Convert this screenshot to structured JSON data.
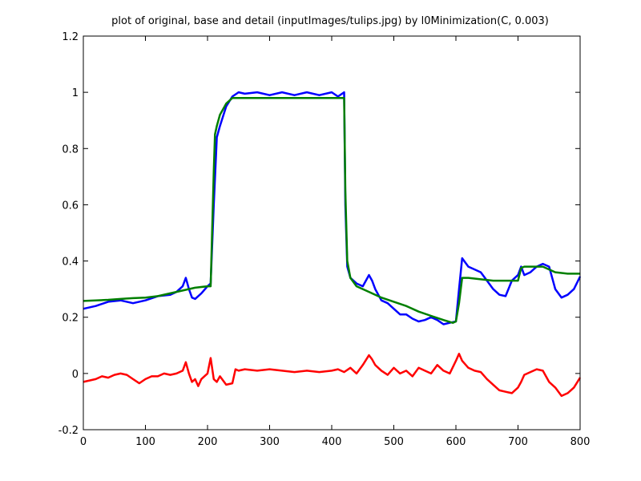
{
  "title": "plot of original, base and detail (inputImages/tulips.jpg) by l0Minimization(C, 0.003)",
  "chart_data": {
    "type": "line",
    "title": "plot of original, base and detail (inputImages/tulips.jpg) by l0Minimization(C, 0.003)",
    "xlabel": "",
    "ylabel": "",
    "xlim": [
      0,
      800
    ],
    "ylim": [
      -0.2,
      1.2
    ],
    "xticks": [
      "0",
      "100",
      "200",
      "300",
      "400",
      "500",
      "600",
      "700",
      "800"
    ],
    "yticks": [
      "-0.2",
      "0",
      "0.2",
      "0.4",
      "0.6",
      "0.8",
      "1",
      "1.2"
    ],
    "grid": false,
    "legend": "none",
    "series": [
      {
        "color": "#0000ff",
        "x": [
          0,
          20,
          40,
          60,
          80,
          100,
          120,
          140,
          150,
          160,
          165,
          170,
          175,
          180,
          190,
          200,
          205,
          210,
          215,
          220,
          230,
          240,
          250,
          260,
          280,
          300,
          320,
          340,
          360,
          380,
          400,
          410,
          420,
          422,
          425,
          430,
          440,
          450,
          460,
          465,
          470,
          480,
          490,
          500,
          510,
          520,
          530,
          540,
          550,
          560,
          570,
          580,
          590,
          600,
          605,
          610,
          620,
          630,
          640,
          650,
          660,
          670,
          680,
          690,
          700,
          705,
          710,
          720,
          730,
          740,
          750,
          760,
          770,
          780,
          790,
          800
        ],
        "values": [
          0.23,
          0.24,
          0.255,
          0.26,
          0.25,
          0.26,
          0.275,
          0.28,
          0.29,
          0.31,
          0.34,
          0.3,
          0.27,
          0.265,
          0.285,
          0.31,
          0.32,
          0.6,
          0.84,
          0.88,
          0.95,
          0.985,
          1.0,
          0.995,
          1.0,
          0.99,
          1.0,
          0.99,
          1.0,
          0.99,
          1.0,
          0.985,
          1.0,
          0.6,
          0.38,
          0.34,
          0.32,
          0.31,
          0.35,
          0.33,
          0.3,
          0.26,
          0.25,
          0.23,
          0.21,
          0.21,
          0.195,
          0.185,
          0.19,
          0.2,
          0.19,
          0.175,
          0.18,
          0.185,
          0.3,
          0.41,
          0.38,
          0.37,
          0.36,
          0.33,
          0.3,
          0.28,
          0.275,
          0.33,
          0.35,
          0.38,
          0.35,
          0.36,
          0.38,
          0.39,
          0.38,
          0.3,
          0.27,
          0.28,
          0.3,
          0.345
        ]
      },
      {
        "color": "#007f00",
        "x": [
          0,
          20,
          40,
          60,
          80,
          100,
          120,
          140,
          160,
          180,
          200,
          205,
          210,
          212,
          215,
          220,
          230,
          240,
          250,
          260,
          300,
          340,
          380,
          400,
          410,
          420,
          422,
          425,
          430,
          440,
          460,
          480,
          500,
          520,
          540,
          560,
          580,
          595,
          600,
          605,
          610,
          620,
          640,
          660,
          680,
          700,
          705,
          710,
          720,
          740,
          760,
          780,
          800
        ],
        "values": [
          0.258,
          0.26,
          0.262,
          0.265,
          0.268,
          0.27,
          0.275,
          0.285,
          0.295,
          0.305,
          0.31,
          0.31,
          0.72,
          0.85,
          0.88,
          0.92,
          0.96,
          0.98,
          0.98,
          0.98,
          0.98,
          0.98,
          0.98,
          0.98,
          0.98,
          0.98,
          0.65,
          0.4,
          0.34,
          0.31,
          0.29,
          0.27,
          0.255,
          0.24,
          0.22,
          0.205,
          0.19,
          0.18,
          0.185,
          0.25,
          0.34,
          0.34,
          0.335,
          0.33,
          0.33,
          0.33,
          0.375,
          0.38,
          0.38,
          0.38,
          0.36,
          0.355,
          0.355
        ]
      },
      {
        "color": "#ff0000",
        "x": [
          0,
          10,
          20,
          30,
          40,
          50,
          60,
          70,
          80,
          90,
          100,
          110,
          120,
          130,
          140,
          150,
          160,
          165,
          170,
          175,
          180,
          185,
          190,
          195,
          200,
          205,
          210,
          215,
          220,
          230,
          240,
          245,
          250,
          260,
          280,
          300,
          320,
          340,
          360,
          380,
          400,
          410,
          420,
          430,
          440,
          450,
          460,
          465,
          470,
          480,
          490,
          500,
          510,
          520,
          530,
          540,
          550,
          560,
          570,
          580,
          590,
          600,
          605,
          610,
          620,
          630,
          640,
          650,
          660,
          670,
          680,
          690,
          700,
          705,
          710,
          720,
          730,
          740,
          750,
          760,
          770,
          780,
          790,
          800
        ],
        "values": [
          -0.03,
          -0.025,
          -0.02,
          -0.01,
          -0.015,
          -0.005,
          0.0,
          -0.005,
          -0.02,
          -0.035,
          -0.02,
          -0.01,
          -0.01,
          0.0,
          -0.005,
          0.0,
          0.01,
          0.04,
          0.0,
          -0.03,
          -0.02,
          -0.045,
          -0.02,
          -0.01,
          0.0,
          0.055,
          -0.02,
          -0.03,
          -0.01,
          -0.04,
          -0.035,
          0.015,
          0.01,
          0.015,
          0.01,
          0.015,
          0.01,
          0.005,
          0.01,
          0.005,
          0.01,
          0.015,
          0.005,
          0.02,
          0.0,
          0.03,
          0.065,
          0.05,
          0.03,
          0.01,
          -0.005,
          0.02,
          0.0,
          0.01,
          -0.01,
          0.02,
          0.01,
          0.0,
          0.03,
          0.01,
          0.0,
          0.045,
          0.07,
          0.045,
          0.02,
          0.01,
          0.005,
          -0.02,
          -0.04,
          -0.06,
          -0.065,
          -0.07,
          -0.05,
          -0.03,
          -0.005,
          0.005,
          0.015,
          0.01,
          -0.03,
          -0.05,
          -0.08,
          -0.07,
          -0.05,
          -0.015
        ]
      }
    ]
  }
}
